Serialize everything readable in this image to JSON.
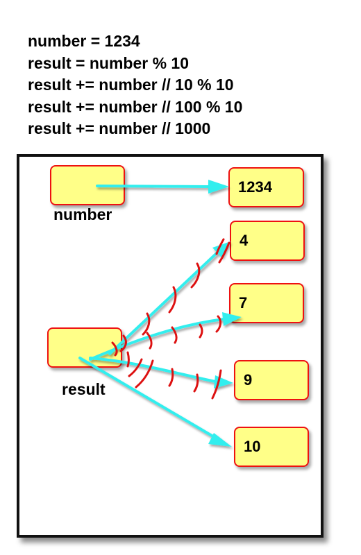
{
  "code_lines": [
    "number = 1234",
    "result = number % 10",
    "result += number // 10 % 10",
    "result += number // 100 % 10",
    "result += number // 1000"
  ],
  "variables": {
    "number": {
      "name": "number"
    },
    "result": {
      "name": "result"
    }
  },
  "values": [
    "1234",
    "4",
    "7",
    "9",
    "10"
  ],
  "colors": {
    "box_fill": "#ffff88",
    "box_border": "#ee1111",
    "arrow": "#33eeee",
    "strike": "#ee1111",
    "frame": "#111111"
  }
}
